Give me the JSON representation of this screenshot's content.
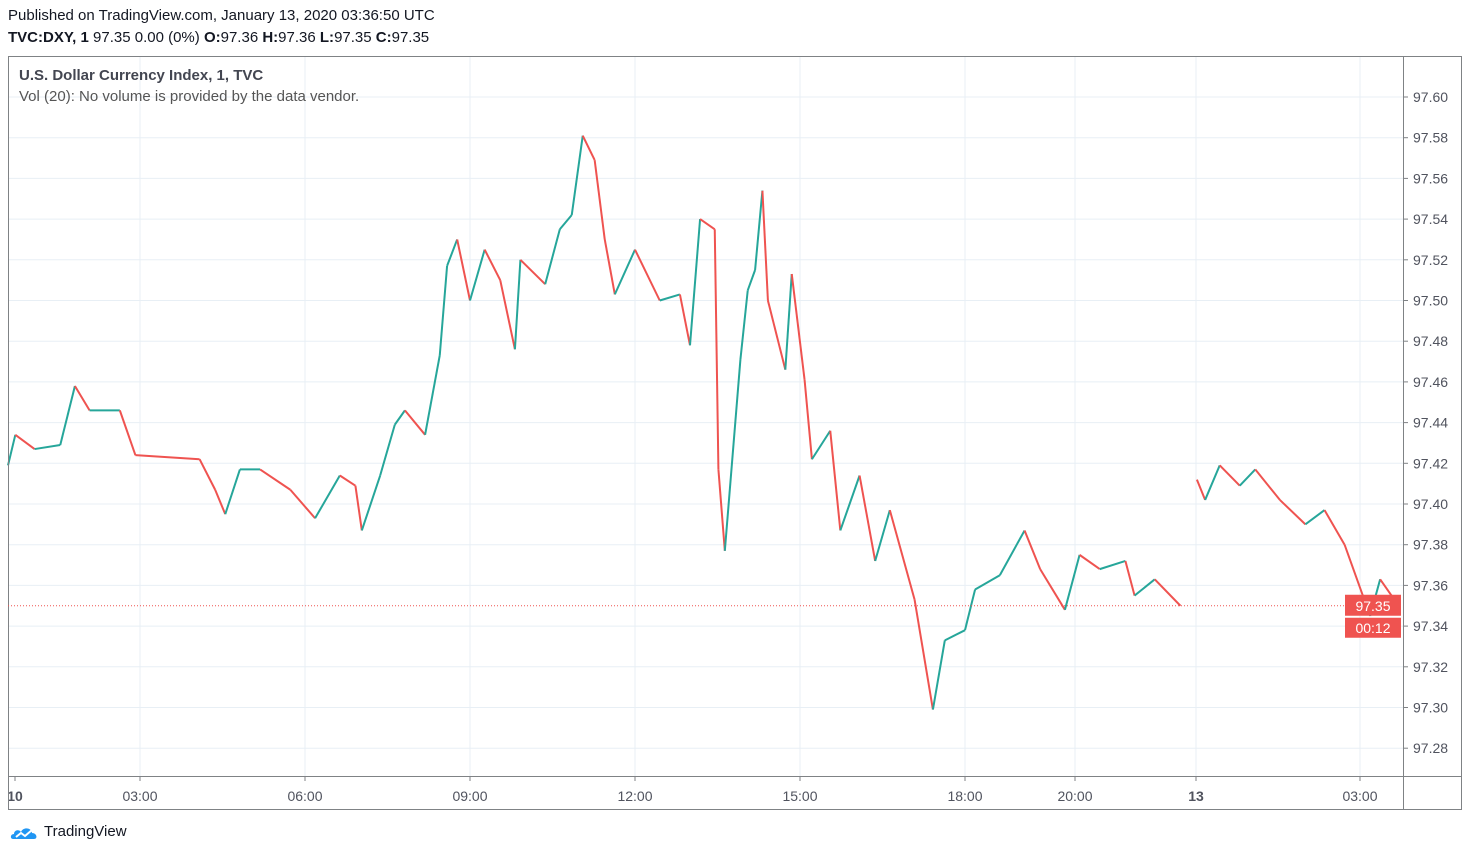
{
  "header": {
    "published": "Published on TradingView.com, January 13, 2020 03:36:50 UTC",
    "symbol": "TVC:DXY, 1",
    "price_change": "97.35 0.00 (0%)",
    "o_label": "O:",
    "o": "97.36",
    "h_label": "H:",
    "h": "97.36",
    "l_label": "L:",
    "l": "97.35",
    "c_label": "C:",
    "c": "97.35"
  },
  "legend": {
    "title": "U.S. Dollar Currency Index, 1, TVC",
    "volume_note": "Vol (20): No volume is provided by the data vendor."
  },
  "brand": {
    "name": "TradingView",
    "icon": "tradingview-cloud-logo"
  },
  "colors": {
    "up": "#26a69a",
    "down": "#ef5350",
    "grid": "#e8eff5",
    "last_price": "#ef5350"
  },
  "chart_data": {
    "type": "candlestick",
    "title": "U.S. Dollar Currency Index, 1, TVC",
    "ylim": [
      97.27,
      97.62
    ],
    "grid": true,
    "y_ticks": [
      "97.28",
      "97.30",
      "97.32",
      "97.34",
      "97.36",
      "97.38",
      "97.40",
      "97.42",
      "97.44",
      "97.46",
      "97.48",
      "97.50",
      "97.52",
      "97.54",
      "97.56",
      "97.58",
      "97.60"
    ],
    "x_ticks": [
      "10",
      "03:00",
      "06:00",
      "09:00",
      "12:00",
      "15:00",
      "18:00",
      "20:00",
      "13",
      "03:00"
    ],
    "last_price": "97.35",
    "countdown": "00:12",
    "price_path": [
      [
        "10 00:36",
        97.419
      ],
      [
        "10 00:44",
        97.434
      ],
      [
        "10 01:05",
        97.427
      ],
      [
        "10 01:33",
        97.429
      ],
      [
        "10 01:49",
        97.458
      ],
      [
        "10 02:05",
        97.446
      ],
      [
        "10 02:38",
        97.446
      ],
      [
        "10 02:55",
        97.424
      ],
      [
        "10 04:05",
        97.422
      ],
      [
        "10 04:22",
        97.407
      ],
      [
        "10 04:33",
        97.395
      ],
      [
        "10 04:49",
        97.417
      ],
      [
        "10 05:11",
        97.417
      ],
      [
        "10 05:44",
        97.407
      ],
      [
        "10 06:11",
        97.393
      ],
      [
        "10 06:38",
        97.414
      ],
      [
        "10 06:55",
        97.409
      ],
      [
        "10 07:02",
        97.387
      ],
      [
        "10 07:22",
        97.414
      ],
      [
        "10 07:38",
        97.439
      ],
      [
        "10 07:49",
        97.446
      ],
      [
        "10 08:11",
        97.434
      ],
      [
        "10 08:27",
        97.473
      ],
      [
        "10 08:35",
        97.517
      ],
      [
        "10 08:46",
        97.53
      ],
      [
        "10 09:00",
        97.5
      ],
      [
        "10 09:16",
        97.525
      ],
      [
        "10 09:33",
        97.51
      ],
      [
        "10 09:49",
        97.476
      ],
      [
        "10 09:55",
        97.52
      ],
      [
        "10 10:22",
        97.508
      ],
      [
        "10 10:38",
        97.535
      ],
      [
        "10 10:51",
        97.542
      ],
      [
        "10 11:03",
        97.581
      ],
      [
        "10 11:16",
        97.569
      ],
      [
        "10 11:27",
        97.53
      ],
      [
        "10 11:38",
        97.503
      ],
      [
        "10 12:00",
        97.525
      ],
      [
        "10 12:27",
        97.5
      ],
      [
        "10 12:49",
        97.503
      ],
      [
        "10 13:00",
        97.478
      ],
      [
        "10 13:11",
        97.54
      ],
      [
        "10 13:27",
        97.535
      ],
      [
        "10 13:31",
        97.417
      ],
      [
        "10 13:38",
        97.377
      ],
      [
        "10 13:55",
        97.471
      ],
      [
        "10 14:03",
        97.505
      ],
      [
        "10 14:11",
        97.515
      ],
      [
        "10 14:19",
        97.554
      ],
      [
        "10 14:25",
        97.5
      ],
      [
        "10 14:44",
        97.466
      ],
      [
        "10 14:51",
        97.513
      ],
      [
        "10 15:05",
        97.461
      ],
      [
        "10 15:13",
        97.422
      ],
      [
        "10 15:33",
        97.436
      ],
      [
        "10 15:44",
        97.387
      ],
      [
        "10 16:05",
        97.414
      ],
      [
        "10 16:22",
        97.372
      ],
      [
        "10 16:38",
        97.397
      ],
      [
        "10 17:05",
        97.353
      ],
      [
        "10 17:25",
        97.299
      ],
      [
        "10 17:38",
        97.333
      ],
      [
        "10 18:00",
        97.338
      ],
      [
        "10 18:11",
        97.358
      ],
      [
        "10 18:38",
        97.365
      ],
      [
        "10 19:05",
        97.387
      ],
      [
        "10 19:22",
        97.368
      ],
      [
        "10 19:49",
        97.348
      ],
      [
        "10 20:05",
        97.375
      ],
      [
        "10 20:27",
        97.368
      ],
      [
        "10 20:55",
        97.372
      ],
      [
        "10 21:05",
        97.355
      ],
      [
        "10 21:27",
        97.363
      ],
      [
        "10 21:55",
        97.35
      ],
      [
        "13 00:01",
        97.412
      ],
      [
        "13 00:10",
        97.402
      ],
      [
        "13 00:26",
        97.419
      ],
      [
        "13 00:48",
        97.409
      ],
      [
        "13 01:05",
        97.417
      ],
      [
        "13 01:32",
        97.402
      ],
      [
        "13 02:00",
        97.39
      ],
      [
        "13 02:21",
        97.397
      ],
      [
        "13 02:43",
        97.38
      ],
      [
        "13 03:11",
        97.345
      ],
      [
        "13 03:22",
        97.363
      ],
      [
        "13 03:36",
        97.354
      ]
    ]
  }
}
